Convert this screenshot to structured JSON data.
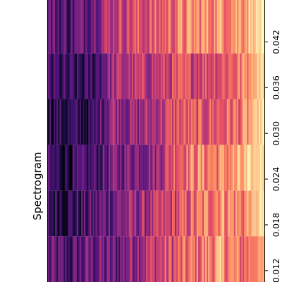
{
  "chart_data": {
    "type": "heatmap",
    "title": "",
    "ylabel": "Spectrogram",
    "xlabel": "",
    "colormap": "magma",
    "time_axis_range": [
      0.0105,
      0.0475
    ],
    "time_tick_values": [
      0.012,
      0.018,
      0.024,
      0.03,
      0.036,
      0.042
    ],
    "time_tick_labels": [
      "0.012",
      "0.018",
      "0.024",
      "0.030",
      "0.036",
      "0.042"
    ],
    "frames": [
      {
        "start": 0.0105,
        "end": 0.0165,
        "profile": [
          0.28,
          0.22,
          0.34,
          0.3,
          0.45,
          0.55,
          0.62,
          0.7,
          0.78,
          0.68,
          0.8
        ],
        "noise": 0.18
      },
      {
        "start": 0.0165,
        "end": 0.0225,
        "profile": [
          0.2,
          0.18,
          0.24,
          0.36,
          0.42,
          0.48,
          0.58,
          0.68,
          0.8,
          0.72,
          0.96
        ],
        "noise": 0.18
      },
      {
        "start": 0.0225,
        "end": 0.0285,
        "profile": [
          0.18,
          0.15,
          0.22,
          0.34,
          0.4,
          0.44,
          0.7,
          0.74,
          0.74,
          0.8,
          0.96
        ],
        "noise": 0.16
      },
      {
        "start": 0.0285,
        "end": 0.0345,
        "profile": [
          0.18,
          0.15,
          0.14,
          0.48,
          0.4,
          0.5,
          0.62,
          0.6,
          0.65,
          0.7,
          0.96
        ],
        "noise": 0.16
      },
      {
        "start": 0.0345,
        "end": 0.0405,
        "profile": [
          0.2,
          0.16,
          0.18,
          0.46,
          0.5,
          0.52,
          0.58,
          0.6,
          0.64,
          0.72,
          0.96
        ],
        "noise": 0.16
      },
      {
        "start": 0.0405,
        "end": 0.0475,
        "profile": [
          0.3,
          0.25,
          0.38,
          0.55,
          0.6,
          0.62,
          0.72,
          0.76,
          0.78,
          0.82,
          0.96
        ],
        "noise": 0.16
      }
    ],
    "colorbar_stops": [
      {
        "v": 0.0,
        "color": "#000004"
      },
      {
        "v": 0.13,
        "color": "#1c1044"
      },
      {
        "v": 0.25,
        "color": "#4f127b"
      },
      {
        "v": 0.38,
        "color": "#812581"
      },
      {
        "v": 0.5,
        "color": "#b5367a"
      },
      {
        "v": 0.63,
        "color": "#e55064"
      },
      {
        "v": 0.75,
        "color": "#fb8761"
      },
      {
        "v": 0.88,
        "color": "#fec287"
      },
      {
        "v": 1.0,
        "color": "#fcfdbf"
      }
    ]
  }
}
